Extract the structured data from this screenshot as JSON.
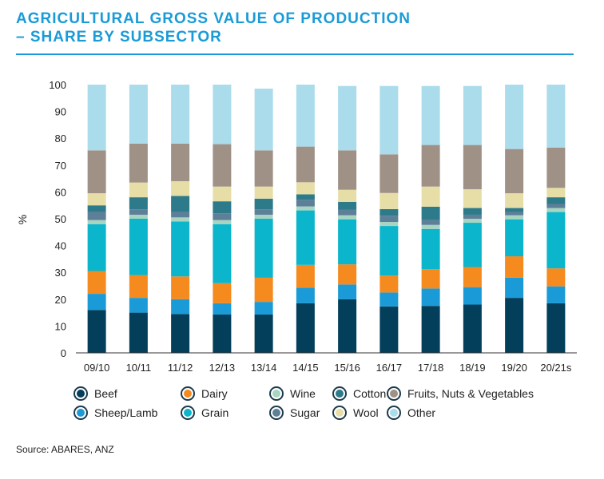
{
  "title": {
    "line1": "AGRICULTURAL GROSS VALUE OF PRODUCTION",
    "line2": "– SHARE BY SUBSECTOR"
  },
  "source": "Source: ABARES, ANZ",
  "chart_data": {
    "type": "bar",
    "stacked": true,
    "categories": [
      "09/10",
      "10/11",
      "11/12",
      "12/13",
      "13/14",
      "14/15",
      "15/16",
      "16/17",
      "17/18",
      "18/19",
      "19/20",
      "20/21s"
    ],
    "ylabel": "%",
    "ylim": [
      0,
      100
    ],
    "yticks": [
      0,
      10,
      20,
      30,
      40,
      50,
      60,
      70,
      80,
      90,
      100
    ],
    "grid": false,
    "legend_position": "bottom",
    "series": [
      {
        "name": "Beef",
        "color": "#033e5a",
        "values": [
          16,
          15,
          14.5,
          14.3,
          14.3,
          18.5,
          20,
          17.3,
          17.5,
          18,
          20.5,
          18.5
        ]
      },
      {
        "name": "Sheep/Lamb",
        "color": "#1a9bd7",
        "values": [
          6,
          5.5,
          5.5,
          4.2,
          4.7,
          5.8,
          5.5,
          5.2,
          6.5,
          6.5,
          7.5,
          6.3
        ]
      },
      {
        "name": "Dairy",
        "color": "#f58a1f",
        "values": [
          8.5,
          8.5,
          8.5,
          7.5,
          9,
          8.5,
          7.5,
          6.3,
          7.2,
          7.5,
          8,
          6.7
        ]
      },
      {
        "name": "Grain",
        "color": "#0bb5cb",
        "values": [
          17.5,
          21,
          20.5,
          22,
          22,
          20.3,
          16.8,
          18.5,
          15,
          16.5,
          13.8,
          21
        ]
      },
      {
        "name": "Wine",
        "color": "#a8d5c2",
        "values": [
          1.5,
          1.5,
          1.5,
          1.5,
          1.5,
          1.5,
          1.5,
          1.5,
          1.5,
          1.5,
          1.5,
          1.5
        ]
      },
      {
        "name": "Sugar",
        "color": "#5d7f98",
        "values": [
          3,
          2,
          2,
          2.5,
          2,
          2.5,
          2,
          2.3,
          1.8,
          1.5,
          1.2,
          1.5
        ]
      },
      {
        "name": "Cotton",
        "color": "#2d7a8b",
        "values": [
          2.5,
          4.5,
          6,
          4.5,
          4,
          2,
          3,
          2.5,
          5,
          2.5,
          1.5,
          2.5
        ]
      },
      {
        "name": "Wool",
        "color": "#e7dea7",
        "values": [
          4.5,
          5.5,
          5.5,
          5.5,
          4.5,
          4.5,
          4.5,
          6,
          7.5,
          7,
          5.5,
          3.5
        ]
      },
      {
        "name": "Fruits, Nuts & Vegetables",
        "color": "#a09186",
        "values": [
          16,
          14.5,
          14,
          15.8,
          13.5,
          13.3,
          14.7,
          14.4,
          15.5,
          16.5,
          16.5,
          15
        ]
      },
      {
        "name": "Other",
        "color": "#aadcec",
        "values": [
          24.5,
          22,
          22,
          22.2,
          23,
          23.1,
          24,
          25.5,
          22,
          22,
          24,
          23.5
        ]
      }
    ]
  }
}
